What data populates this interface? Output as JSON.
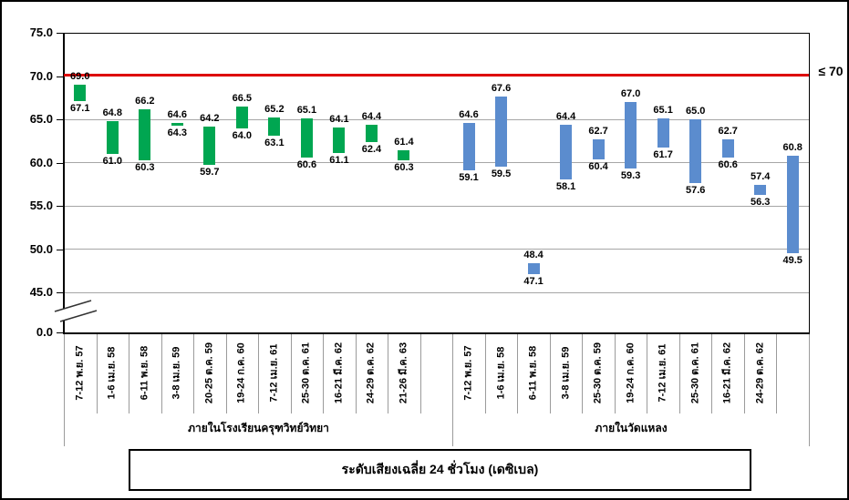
{
  "chart_data": {
    "type": "bar",
    "subtype": "floating-range-bars",
    "title": "ระดับเสียงเฉลี่ย 24 ชั่วโมง (เดซิเบล)",
    "xlabel": "",
    "ylabel": "",
    "grid": true,
    "legend_position": "none",
    "y_axis": {
      "ticks": [
        "75.0",
        "70.0",
        "65.0",
        "60.0",
        "55.0",
        "50.0",
        "45.0",
        "0.0"
      ],
      "tick_values": [
        75,
        70,
        65,
        60,
        55,
        50,
        45,
        0
      ],
      "axis_break": true,
      "range_shown": [
        45,
        75
      ]
    },
    "limit_line": {
      "value": 70,
      "label": "≤ 70",
      "color": "#dd0000"
    },
    "groups": [
      {
        "name": "ภายในโรงเรียนครุฑวิทย์วิทยา",
        "color": "#00A651",
        "bars": [
          {
            "label": "7-12 พ.ย. 57",
            "max": 69.0,
            "min": 67.1
          },
          {
            "label": "1-6 เม.ย. 58",
            "max": 64.8,
            "min": 61.0
          },
          {
            "label": "6-11 พ.ย. 58",
            "max": 66.2,
            "min": 60.3
          },
          {
            "label": "3-8 เม.ย. 59",
            "max": 64.6,
            "min": 64.3
          },
          {
            "label": "20-25 ต.ค. 59",
            "max": 64.2,
            "min": 59.7
          },
          {
            "label": "19-24 ก.ค. 60",
            "max": 66.5,
            "min": 64.0
          },
          {
            "label": "7-12 เม.ย. 61",
            "max": 65.2,
            "min": 63.1
          },
          {
            "label": "25-30 ต.ค. 61",
            "max": 65.1,
            "min": 60.6
          },
          {
            "label": "16-21 มี.ค. 62",
            "max": 64.1,
            "min": 61.1
          },
          {
            "label": "24-29 ต.ค. 62",
            "max": 64.4,
            "min": 62.4
          },
          {
            "label": "21-26 มี.ค. 63",
            "max": 61.4,
            "min": 60.3
          }
        ]
      },
      {
        "name": "ภายในวัดแหลง",
        "color": "#5B8CCE",
        "bars": [
          {
            "label": "7-12 พ.ย. 57",
            "max": 64.6,
            "min": 59.1
          },
          {
            "label": "1-6 เม.ย. 58",
            "max": 67.6,
            "min": 59.5
          },
          {
            "label": "6-11 พ.ย. 58",
            "max": 48.4,
            "min": 47.1
          },
          {
            "label": "3-8 เม.ย. 59",
            "max": 64.4,
            "min": 58.1
          },
          {
            "label": "25-30 ต.ค. 59",
            "max": 62.7,
            "min": 60.4
          },
          {
            "label": "19-24 ก.ค. 60",
            "max": 67.0,
            "min": 59.3
          },
          {
            "label": "7-12 เม.ย. 61",
            "max": 65.1,
            "min": 61.7
          },
          {
            "label": "25-30 ต.ค. 61",
            "max": 65.0,
            "min": 57.6
          },
          {
            "label": "16-21 มี.ค. 62",
            "max": 62.7,
            "min": 60.6
          },
          {
            "label": "24-29 ต.ค. 62",
            "max": 57.4,
            "min": 56.3
          },
          {
            "label": "",
            "max": 60.8,
            "min": 49.5
          }
        ]
      }
    ]
  }
}
